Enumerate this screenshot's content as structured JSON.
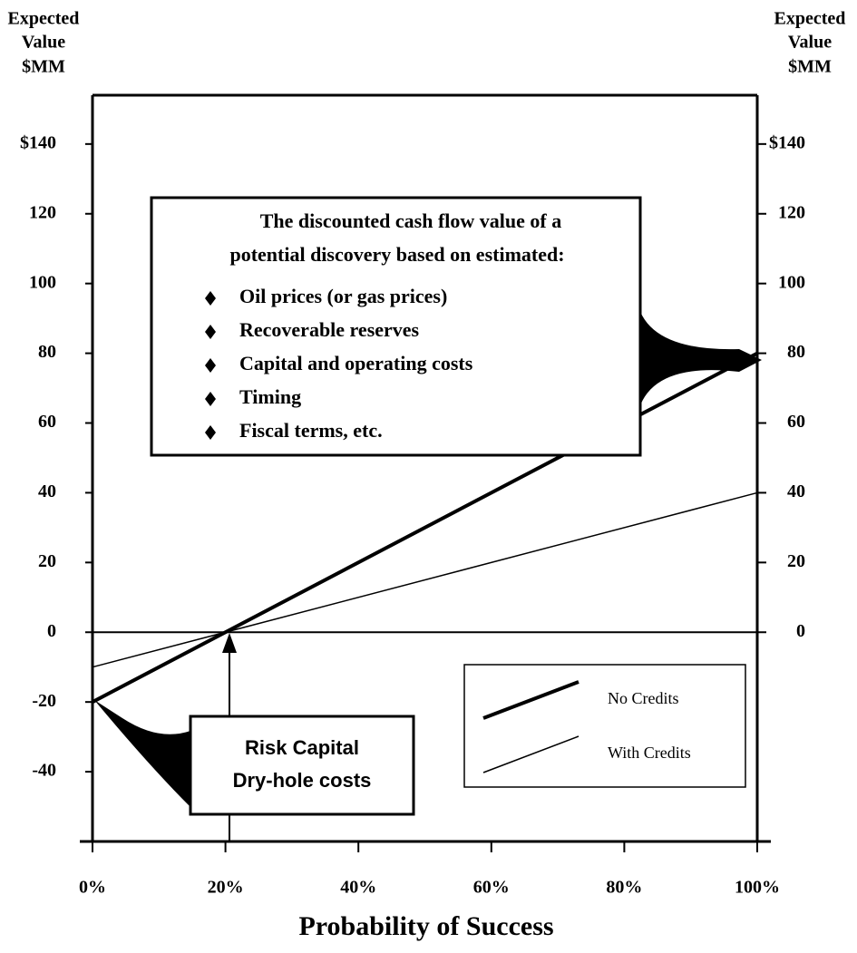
{
  "chart_data": {
    "type": "line",
    "y_label": [
      "Expected",
      "Value",
      "$MM"
    ],
    "y2_label": [
      "Expected",
      "Value",
      "$MM"
    ],
    "x_label": "Probability of Success",
    "x": [
      0,
      100
    ],
    "xlim": [
      0,
      100
    ],
    "xticks": [
      {
        "value": 0,
        "label": "0%"
      },
      {
        "value": 20,
        "label": "20%"
      },
      {
        "value": 40,
        "label": "40%"
      },
      {
        "value": 60,
        "label": "60%"
      },
      {
        "value": 80,
        "label": "80%"
      },
      {
        "value": 100,
        "label": "100%"
      }
    ],
    "ylim": [
      -60,
      154
    ],
    "yticks": [
      {
        "value": 140,
        "label": "$140"
      },
      120,
      100,
      80,
      60,
      40,
      20,
      0,
      -20,
      -40
    ],
    "y2lim": [
      -60,
      154
    ],
    "y2ticks": [
      {
        "value": 140,
        "label": "$140"
      },
      120,
      100,
      80,
      60,
      40,
      20,
      0
    ],
    "series": [
      {
        "name": "No Credits",
        "color": "#000000",
        "width": 4,
        "values": [
          -20,
          80
        ]
      },
      {
        "name": "With Credits",
        "color": "#000000",
        "width": 1.5,
        "values": [
          -10,
          40
        ]
      }
    ],
    "annotations": {
      "info_box": {
        "lines": [
          "The discounted cash flow value of a",
          "potential discovery based on estimated:"
        ],
        "bullets": [
          "Oil prices (or gas prices)",
          "Recoverable reserves",
          "Capital and operating costs",
          "Timing",
          "Fiscal terms, etc."
        ]
      },
      "risk_box": [
        "Risk Capital",
        "Dry-hole costs"
      ]
    }
  }
}
